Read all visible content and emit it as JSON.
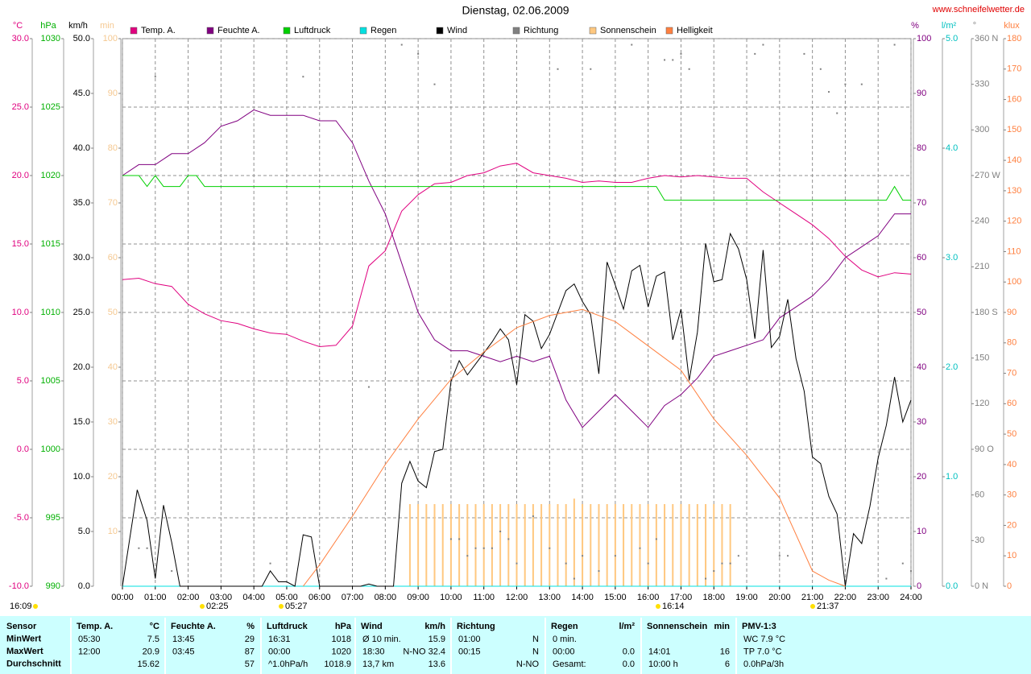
{
  "chart_data": {
    "type": "line",
    "title": "Dienstag, 02.06.2009",
    "source": "www.schneifelwetter.de",
    "grid": true,
    "xlim": [
      0,
      24
    ],
    "xticks": [
      {
        "value": 0,
        "label": "00:00"
      },
      {
        "value": 1,
        "label": "01:00"
      },
      {
        "value": 2,
        "label": "02:00"
      },
      {
        "value": 3,
        "label": "03:00"
      },
      {
        "value": 4,
        "label": "04:00"
      },
      {
        "value": 5,
        "label": "05:00"
      },
      {
        "value": 6,
        "label": "06:00"
      },
      {
        "value": 7,
        "label": "07:00"
      },
      {
        "value": 8,
        "label": "08:00"
      },
      {
        "value": 9,
        "label": "09:00"
      },
      {
        "value": 10,
        "label": "10:00"
      },
      {
        "value": 11,
        "label": "11:00"
      },
      {
        "value": 12,
        "label": "12:00"
      },
      {
        "value": 13,
        "label": "13:00"
      },
      {
        "value": 14,
        "label": "14:00"
      },
      {
        "value": 15,
        "label": "15:00"
      },
      {
        "value": 16,
        "label": "16:00"
      },
      {
        "value": 17,
        "label": "17:00"
      },
      {
        "value": 18,
        "label": "18:00"
      },
      {
        "value": 19,
        "label": "19:00"
      },
      {
        "value": 20,
        "label": "20:00"
      },
      {
        "value": 21,
        "label": "21:00"
      },
      {
        "value": 22,
        "label": "22:00"
      },
      {
        "value": 23,
        "label": "23:00"
      },
      {
        "value": 24,
        "label": "24:00"
      }
    ],
    "axes": [
      {
        "unit": "°C",
        "color": "#e0007f",
        "lim": [
          -10,
          30
        ],
        "ticks": [
          {
            "value": -10,
            "label": "-10.0"
          },
          {
            "value": -5,
            "label": "-5.0"
          },
          {
            "value": 0,
            "label": "0.0"
          },
          {
            "value": 5,
            "label": "5.0"
          },
          {
            "value": 10,
            "label": "10.0"
          },
          {
            "value": 15,
            "label": "15.0"
          },
          {
            "value": 20,
            "label": "20.0"
          },
          {
            "value": 25,
            "label": "25.0"
          },
          {
            "value": 30,
            "label": "30.0"
          }
        ]
      },
      {
        "unit": "hPa",
        "color": "#00b000",
        "lim": [
          990,
          1030
        ],
        "ticks": [
          990,
          995,
          1000,
          1005,
          1010,
          1015,
          1020,
          1025,
          1030
        ]
      },
      {
        "unit": "km/h",
        "color": "#000000",
        "lim": [
          0,
          50
        ],
        "ticks": [
          {
            "value": 0,
            "label": "0.0"
          },
          {
            "value": 5,
            "label": "5.0"
          },
          {
            "value": 10,
            "label": "10.0"
          },
          {
            "value": 15,
            "label": "15.0"
          },
          {
            "value": 20,
            "label": "20.0"
          },
          {
            "value": 25,
            "label": "25.0"
          },
          {
            "value": 30,
            "label": "30.0"
          },
          {
            "value": 35,
            "label": "35.0"
          },
          {
            "value": 40,
            "label": "40.0"
          },
          {
            "value": 45,
            "label": "45.0"
          },
          {
            "value": 50,
            "label": "50.0"
          }
        ]
      },
      {
        "unit": "min",
        "color": "#f5c890",
        "lim": [
          0,
          100
        ],
        "ticks": [
          10,
          20,
          30,
          40,
          50,
          60,
          70,
          80,
          90,
          100
        ]
      },
      {
        "unit": "%",
        "color": "#800080",
        "lim": [
          0,
          100
        ],
        "ticks": [
          0,
          10,
          20,
          30,
          40,
          50,
          60,
          70,
          80,
          90,
          100
        ]
      },
      {
        "unit": "l/m²",
        "color": "#00c0c0",
        "lim": [
          0,
          5
        ],
        "ticks": [
          {
            "value": 0,
            "label": "0.0"
          },
          {
            "value": 1,
            "label": "1.0"
          },
          {
            "value": 2,
            "label": "2.0"
          },
          {
            "value": 3,
            "label": "3.0"
          },
          {
            "value": 4,
            "label": "4.0"
          },
          {
            "value": 5,
            "label": "5.0"
          }
        ]
      },
      {
        "unit": "°",
        "color": "#808080",
        "lim": [
          0,
          360
        ],
        "ticks": [
          {
            "value": 0,
            "label": "0   N"
          },
          30,
          60,
          {
            "value": 90,
            "label": "90   O"
          },
          120,
          150,
          {
            "value": 180,
            "label": "180 S"
          },
          210,
          240,
          {
            "value": 270,
            "label": "270 W"
          },
          300,
          330,
          {
            "value": 360,
            "label": "360 N"
          }
        ]
      },
      {
        "unit": "klux",
        "color": "#ff8040",
        "lim": [
          0,
          180
        ],
        "ticks": [
          0,
          10,
          20,
          30,
          40,
          50,
          60,
          70,
          80,
          90,
          100,
          110,
          120,
          130,
          140,
          150,
          160,
          170,
          180
        ]
      }
    ],
    "series": [
      {
        "name": "Temp. A.",
        "color": "#e0007f",
        "axis": 0,
        "type": "line",
        "x": [
          0,
          0.5,
          1,
          1.5,
          2,
          2.5,
          3,
          3.5,
          4,
          4.5,
          5,
          5.5,
          6,
          6.5,
          7,
          7.5,
          8,
          8.5,
          9,
          9.5,
          10,
          10.5,
          11,
          11.5,
          12,
          12.5,
          13,
          13.5,
          14,
          14.5,
          15,
          15.5,
          16,
          16.5,
          17,
          17.5,
          18,
          18.5,
          19,
          19.5,
          20,
          20.5,
          21,
          21.5,
          22,
          22.5,
          23,
          23.5,
          24
        ],
        "values": [
          12.4,
          12.5,
          12.1,
          11.9,
          10.6,
          9.9,
          9.4,
          9.2,
          8.8,
          8.5,
          8.4,
          7.9,
          7.5,
          7.6,
          9.0,
          13.4,
          14.5,
          17.4,
          18.6,
          19.4,
          19.5,
          20.0,
          20.2,
          20.7,
          20.9,
          20.2,
          20.0,
          19.8,
          19.5,
          19.6,
          19.5,
          19.5,
          19.8,
          20.0,
          19.9,
          20.0,
          19.9,
          19.8,
          19.8,
          18.8,
          18.0,
          17.2,
          16.4,
          15.4,
          14.1,
          13.1,
          12.6,
          12.9,
          12.8
        ]
      },
      {
        "name": "Feuchte A.",
        "color": "#800080",
        "axis": 4,
        "type": "line",
        "x": [
          0,
          0.5,
          1,
          1.5,
          2,
          2.5,
          3,
          3.5,
          4,
          4.5,
          5,
          5.5,
          6,
          6.5,
          7,
          7.5,
          8,
          8.5,
          9,
          9.5,
          10,
          10.5,
          11,
          11.5,
          12,
          12.5,
          13,
          13.5,
          14,
          14.5,
          15,
          15.5,
          16,
          16.5,
          17,
          17.5,
          18,
          18.5,
          19,
          19.5,
          20,
          20.5,
          21,
          21.5,
          22,
          22.5,
          23,
          23.5,
          24
        ],
        "values": [
          75,
          77,
          77,
          79,
          79,
          81,
          84,
          85,
          87,
          86,
          86,
          86,
          85,
          85,
          81,
          74,
          68,
          59,
          50,
          45,
          43,
          43,
          42,
          41,
          42,
          41,
          42,
          34,
          29,
          32,
          35,
          32,
          29,
          33,
          35,
          38,
          42,
          43,
          44,
          45,
          49,
          51,
          53,
          56,
          60,
          62,
          64,
          68,
          68
        ]
      },
      {
        "name": "Luftdruck",
        "color": "#00d000",
        "axis": 1,
        "type": "line",
        "x": [
          0,
          0.5,
          0.75,
          1,
          1.25,
          1.75,
          2,
          2.25,
          2.5,
          16.25,
          16.5,
          23.25,
          23.5,
          23.75,
          24
        ],
        "values": [
          1020,
          1020,
          1019.2,
          1020,
          1019.2,
          1019.2,
          1020,
          1020,
          1019.2,
          1019.2,
          1018.2,
          1018.2,
          1019.2,
          1018.2,
          1018.2
        ]
      },
      {
        "name": "Regen",
        "color": "#00e0e0",
        "axis": 5,
        "type": "line",
        "x": [
          0,
          24
        ],
        "values": [
          0,
          0
        ]
      },
      {
        "name": "Wind",
        "color": "#000000",
        "axis": 2,
        "type": "line",
        "x": [
          0,
          0.45,
          0.75,
          1,
          1.25,
          1.5,
          1.75,
          4.25,
          4.5,
          4.75,
          5,
          5.25,
          5.5,
          5.75,
          6,
          7.25,
          7.5,
          7.75,
          8.25,
          8.5,
          8.75,
          9,
          9.25,
          9.5,
          9.75,
          10,
          10.25,
          10.5,
          10.75,
          11,
          11.25,
          11.5,
          11.75,
          12,
          12.25,
          12.5,
          12.75,
          13,
          13.25,
          13.5,
          13.75,
          14,
          14.25,
          14.5,
          14.75,
          15,
          15.25,
          15.5,
          15.75,
          16,
          16.25,
          16.5,
          16.75,
          17,
          17.25,
          17.5,
          17.75,
          18,
          18.25,
          18.5,
          18.75,
          19,
          19.25,
          19.5,
          19.75,
          20,
          20.25,
          20.5,
          20.75,
          21,
          21.25,
          21.5,
          21.75,
          22,
          22.25,
          22.5,
          22.75,
          23,
          23.25,
          23.5,
          23.75,
          24
        ],
        "values": [
          0,
          8.8,
          6,
          0.7,
          7.4,
          4,
          0,
          0,
          1.4,
          0.4,
          0.4,
          0,
          4.7,
          4.5,
          0,
          0,
          0.2,
          0,
          0,
          9.4,
          11.4,
          9.6,
          9.0,
          12.3,
          12.5,
          18.7,
          20.6,
          19.3,
          20.3,
          21.3,
          22.3,
          23.5,
          22.5,
          18.4,
          24.8,
          24.2,
          21.7,
          23,
          25,
          27,
          27.6,
          26,
          24.8,
          19.4,
          29.6,
          27.5,
          25.3,
          28.8,
          29.3,
          25.5,
          28.3,
          28.7,
          22.5,
          25.3,
          18.8,
          23.2,
          31.3,
          27.8,
          28,
          32.2,
          30.8,
          28,
          22.6,
          30.7,
          21.8,
          22.8,
          26.2,
          20.8,
          17.8,
          11.8,
          11.2,
          8.2,
          6.6,
          0,
          4.8,
          3.9,
          7.3,
          11.7,
          14.7,
          19.1,
          15.0,
          17.0
        ]
      },
      {
        "name": "Richtung",
        "color": "#808080",
        "axis": 6,
        "type": "dot",
        "x": [
          0.5,
          0.75,
          1,
          1.5,
          4.5,
          5.5,
          7.5,
          8.5,
          9,
          9.5,
          10,
          10.25,
          10.5,
          10.75,
          11,
          11.25,
          11.5,
          11.75,
          12,
          12.5,
          13,
          13.25,
          13.5,
          13.75,
          14,
          14.25,
          14.5,
          15,
          15.5,
          15.75,
          16,
          16.25,
          16.5,
          16.75,
          17,
          17.25,
          17.75,
          18,
          18.25,
          18.5,
          18.75,
          19.25,
          19.5,
          20,
          20.25,
          20.75,
          21.25,
          21.5,
          21.75,
          22,
          22.5,
          23.25,
          23.5,
          23.75,
          24
        ],
        "values": [
          25,
          25,
          335,
          10,
          15,
          335,
          131,
          356,
          350,
          330,
          31,
          31,
          20,
          25,
          25,
          25,
          36,
          31,
          15,
          46,
          25,
          340,
          15,
          5,
          20,
          340,
          10,
          20,
          356,
          25,
          15,
          31,
          346,
          346,
          350,
          340,
          5,
          10,
          15,
          15,
          20,
          350,
          356,
          20,
          20,
          350,
          340,
          325,
          311,
          330,
          330,
          5,
          356,
          15,
          10
        ]
      },
      {
        "name": "Sonnenschein",
        "color": "#ffc880",
        "axis": 3,
        "type": "bar",
        "x": [
          8.75,
          9,
          9.25,
          9.5,
          9.75,
          10,
          10.25,
          10.5,
          10.75,
          11,
          11.25,
          11.5,
          11.75,
          12,
          12.25,
          12.5,
          12.75,
          13,
          13.25,
          13.5,
          13.75,
          14,
          14.25,
          14.5,
          14.75,
          15,
          15.25,
          15.5,
          15.75,
          16,
          16.25,
          16.5,
          16.75,
          17,
          17.25,
          17.5,
          17.75,
          18,
          18.25,
          18.5
        ],
        "values": [
          15,
          15,
          15,
          15,
          15,
          15,
          15,
          15,
          15,
          15,
          15,
          15,
          15,
          15,
          15,
          15,
          15,
          15,
          15,
          15,
          16,
          15,
          15,
          15,
          15,
          15,
          15,
          15,
          15,
          15,
          15,
          15,
          15,
          15,
          15,
          15,
          15,
          15,
          15,
          15
        ]
      },
      {
        "name": "Helligkeit",
        "color": "#ff8040",
        "axis": 7,
        "type": "line",
        "x": [
          5.5,
          6,
          7,
          8,
          9,
          10,
          11,
          12,
          13,
          14,
          15,
          16,
          17,
          18,
          19,
          20,
          21,
          21.5,
          22
        ],
        "values": [
          0,
          7,
          23,
          40,
          55,
          68,
          77,
          85,
          89,
          91,
          87,
          79,
          71,
          55,
          43,
          29,
          5,
          2,
          0
        ]
      }
    ],
    "time_markers": [
      "16:09",
      "02:25",
      "05:27",
      "16:14",
      "21:37"
    ]
  },
  "stats": {
    "row_labels": [
      "Sensor",
      "MinWert",
      "MaxWert",
      "Durchschnitt"
    ],
    "groups": [
      {
        "title": "Temp. A.",
        "unit": "°C",
        "rows": [
          [
            "05:30",
            "7.5"
          ],
          [
            "12:00",
            "20.9"
          ],
          [
            null,
            "15.62"
          ]
        ]
      },
      {
        "title": "Feuchte A.",
        "unit": "%",
        "rows": [
          [
            "13:45",
            "29"
          ],
          [
            "03:45",
            "87"
          ],
          [
            null,
            "57"
          ]
        ]
      },
      {
        "title": "Luftdruck",
        "unit": "hPa",
        "rows": [
          [
            "16:31",
            "1018"
          ],
          [
            "00:00",
            "1020"
          ],
          [
            "^1.0hPa/h",
            "1018.9"
          ]
        ]
      },
      {
        "title": "Wind",
        "unit": "km/h",
        "rows": [
          [
            "Ø 10 min.",
            "15.9"
          ],
          [
            "18:30",
            "N-NO 32.4"
          ],
          [
            "13,7 km",
            "13.6"
          ]
        ]
      },
      {
        "title": "Richtung",
        "rows": [
          [
            "01:00",
            "N"
          ],
          [
            "00:15",
            "N"
          ],
          [
            null,
            "N-NO"
          ]
        ]
      },
      {
        "title": "Regen",
        "unit": "l/m²",
        "rows": [
          [
            "0 min.",
            null
          ],
          [
            "00:00",
            "0.0"
          ],
          [
            "Gesamt:",
            "0.0"
          ]
        ]
      },
      {
        "title": "Sonnenschein",
        "unit": "min",
        "rows": [
          [
            null,
            null
          ],
          [
            "14:01",
            "16"
          ],
          [
            "10:00 h",
            "6"
          ]
        ]
      },
      {
        "title": "PMV-1:3",
        "rows": [
          [
            "WC 7.9 °C"
          ],
          [
            "TP 7.0 °C"
          ],
          [
            "0.0hPa/3h"
          ]
        ]
      }
    ]
  }
}
